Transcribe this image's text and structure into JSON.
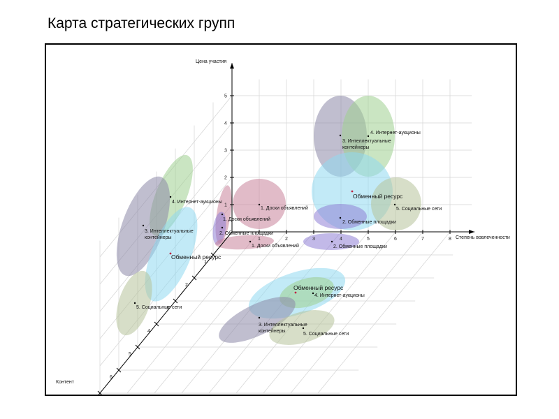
{
  "title": "Карта стратегических групп",
  "chart_data": {
    "type": "scatter",
    "subtype": "3d-bubble-projection",
    "grid": true,
    "axes": {
      "y": {
        "label": "Цена участия",
        "ticks": [
          "1",
          "2",
          "3",
          "4",
          "5"
        ]
      },
      "x": {
        "label": "Степень  вовлеченности",
        "ticks": [
          "1",
          "2",
          "3",
          "4",
          "5",
          "6",
          "7",
          "8"
        ]
      },
      "z": {
        "label": "Контент",
        "ticks": [
          "1",
          "2",
          "3",
          "4",
          "5",
          "6",
          "7"
        ]
      }
    },
    "colors": {
      "boards": "#c9849a",
      "exchange_sites": "#8f7fd6",
      "resource": "#8fd8f0",
      "containers": "#8d88a8",
      "auctions": "#9fcf8f",
      "social": "#b7c29b"
    },
    "planes": [
      {
        "name": "xy",
        "points": [
          {
            "label": "1. Доски объявлений",
            "x": 1,
            "y": 1.0
          },
          {
            "label": "2. Обменные площадки",
            "x": 4,
            "y": 0.3
          },
          {
            "label": "Обменный ресурс",
            "x": 4.5,
            "y": 1.5
          },
          {
            "label": "3. Интеллектуальные контейнеры",
            "x": 4,
            "y": 3.5
          },
          {
            "label": "4. Интернет-аукционы",
            "x": 5,
            "y": 3.5
          },
          {
            "label": "5. Социальные сети",
            "x": 6,
            "y": 1.0
          }
        ]
      },
      {
        "name": "yz",
        "points": [
          {
            "label": "1. Доски объявлений",
            "z": 0.5,
            "y": 0.9
          },
          {
            "label": "2. Обменные площадки",
            "z": 0.5,
            "y": 0.2
          },
          {
            "label": "Обменный ресурс",
            "z": 2.3,
            "y": 0.6
          },
          {
            "label": "3. Интеллектуальные контейнеры",
            "z": 1.5,
            "y": 1.9
          },
          {
            "label": "4. Интернет-аукционы",
            "z": 0.4,
            "y": 3.2
          },
          {
            "label": "5. Социальные сети",
            "z": 3.7,
            "y": 0.6
          }
        ]
      },
      {
        "name": "xz",
        "points": [
          {
            "label": "1. Доски объявлений",
            "x": 0.5,
            "z": 0.5
          },
          {
            "label": "2. Обменные площадки",
            "x": 3.5,
            "z": 0.5
          },
          {
            "label": "Обменный ресурс",
            "x": 4.5,
            "z": 3.5
          },
          {
            "label": "4. Интернет-аукционы",
            "x": 5.0,
            "z": 3.4
          },
          {
            "label": "3. Интеллектуальные контейнеры",
            "x": 3.3,
            "z": 4.5
          },
          {
            "label": "5. Социальные сети",
            "x": 4.8,
            "z": 4.8
          }
        ]
      }
    ]
  }
}
